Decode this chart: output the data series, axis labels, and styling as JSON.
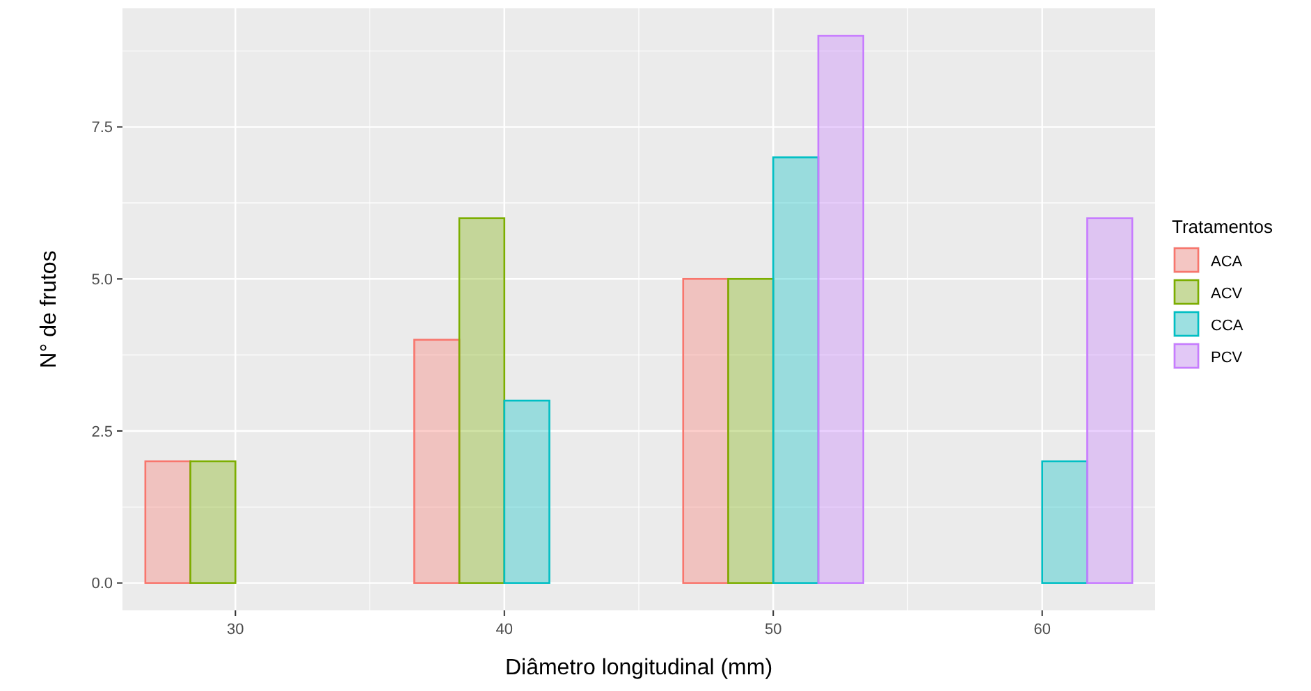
{
  "chart_data": {
    "type": "bar",
    "xlabel": "Diâmetro longitudinal (mm)",
    "ylabel": "N° de frutos",
    "legend_title": "Tratamentos",
    "categories": [
      "30",
      "40",
      "50",
      "60"
    ],
    "series": [
      {
        "name": "ACA",
        "color": "#f8766d",
        "values": [
          2,
          4,
          5,
          0
        ]
      },
      {
        "name": "ACV",
        "color": "#7cae00",
        "values": [
          2,
          6,
          5,
          0
        ]
      },
      {
        "name": "CCA",
        "color": "#00bfc4",
        "values": [
          0,
          3,
          7,
          2
        ]
      },
      {
        "name": "PCV",
        "color": "#c77cff",
        "values": [
          0,
          0,
          9,
          6
        ]
      }
    ],
    "ylim": [
      -0.45,
      9.45
    ],
    "yticks": [
      {
        "value": 0,
        "label": "0.0"
      },
      {
        "value": 2.5,
        "label": "2.5"
      },
      {
        "value": 5,
        "label": "5.0"
      },
      {
        "value": 7.5,
        "label": "7.5"
      }
    ],
    "grid": true,
    "legend": "right"
  }
}
